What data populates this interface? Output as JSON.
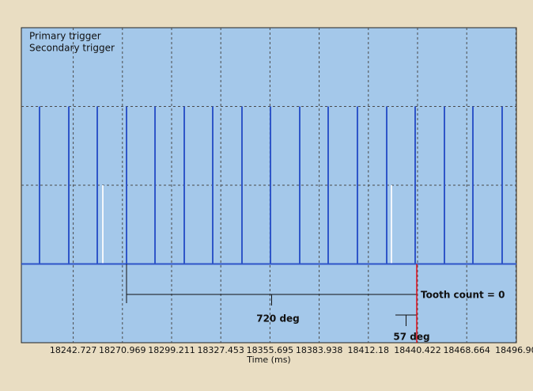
{
  "chart_data": {
    "type": "pulse",
    "x_label": "Time (ms)",
    "xlim": [
      18212.94,
      18497.18
    ],
    "xticks": [
      18242.727,
      18270.969,
      18299.211,
      18327.453,
      18355.695,
      18383.938,
      18412.18,
      18440.422,
      18468.664,
      {
        "value": 18496.9,
        "label": "18496.90"
      }
    ],
    "ylim": [
      -1,
      3
    ],
    "yticks": [
      1,
      2
    ],
    "ytick_labels": false,
    "grid": true,
    "legend": "top-left",
    "series": [
      {
        "name": "Primary trigger",
        "color": "#2e55c8",
        "x": [
          18223.38,
          18240.18,
          18256.53,
          18273.33,
          18289.68,
          18306.48,
          18322.82,
          18339.62,
          18355.97,
          18372.77,
          18389.11,
          18405.91,
          18422.71,
          18439.06,
          18455.86,
          18472.2,
          18489.0
        ],
        "values": [
          2,
          2,
          2,
          2,
          2,
          2,
          2,
          2,
          2,
          2,
          2,
          2,
          2,
          2,
          2,
          2,
          2
        ]
      },
      {
        "name": "Secondary trigger",
        "color": "#f2f6fb",
        "x": [
          18259.71,
          18425.44
        ],
        "values": [
          1,
          1
        ]
      }
    ],
    "annotations": [
      {
        "text": "720 deg",
        "x": [
          18273.33,
          18439.97
        ]
      },
      {
        "text": "57 deg",
        "x": [
          18427.71,
          18439.97
        ]
      },
      {
        "text": "Tooth count = 0",
        "x": 18439.97,
        "color": "#e0101a"
      }
    ]
  }
}
